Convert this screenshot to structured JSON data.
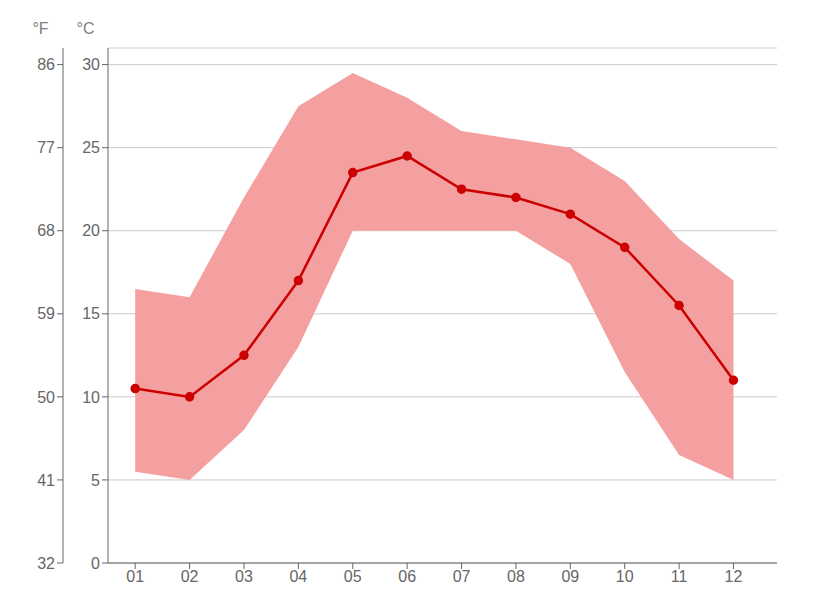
{
  "chart_data": {
    "type": "line",
    "ylabel": "°C",
    "y2label": "°F",
    "x": [
      1,
      2,
      3,
      4,
      5,
      6,
      7,
      8,
      9,
      10,
      11,
      12
    ],
    "xlim": [
      0.5,
      12.8
    ],
    "xticks": [
      {
        "value": 1,
        "label": "01"
      },
      {
        "value": 2,
        "label": "02"
      },
      {
        "value": 3,
        "label": "03"
      },
      {
        "value": 4,
        "label": "04"
      },
      {
        "value": 5,
        "label": "05"
      },
      {
        "value": 6,
        "label": "06"
      },
      {
        "value": 7,
        "label": "07"
      },
      {
        "value": 8,
        "label": "08"
      },
      {
        "value": 9,
        "label": "09"
      },
      {
        "value": 10,
        "label": "10"
      },
      {
        "value": 11,
        "label": "11"
      },
      {
        "value": 12,
        "label": "12"
      }
    ],
    "ylim": [
      0,
      31
    ],
    "yticks": [
      0,
      5,
      10,
      15,
      20,
      25,
      30
    ],
    "y2lim": [
      32,
      87.8
    ],
    "y2ticks": [
      32,
      41,
      50,
      59,
      68,
      77,
      86
    ],
    "grid": true,
    "series": [
      {
        "type": "range",
        "color": "#f4a0a0",
        "low": [
          5.5,
          5.0,
          8.0,
          13.0,
          20.0,
          20.0,
          20.0,
          20.0,
          18.0,
          11.5,
          6.5,
          5.0
        ],
        "high": [
          16.5,
          16.0,
          22.0,
          27.5,
          29.5,
          28.0,
          26.0,
          25.5,
          25.0,
          23.0,
          19.5,
          17.0
        ]
      },
      {
        "type": "line",
        "color": "#cc0000",
        "marker": "circle",
        "values": [
          10.5,
          10.0,
          12.5,
          17.0,
          23.5,
          24.5,
          22.5,
          22.0,
          21.0,
          19.0,
          15.5,
          11.0
        ]
      }
    ]
  }
}
